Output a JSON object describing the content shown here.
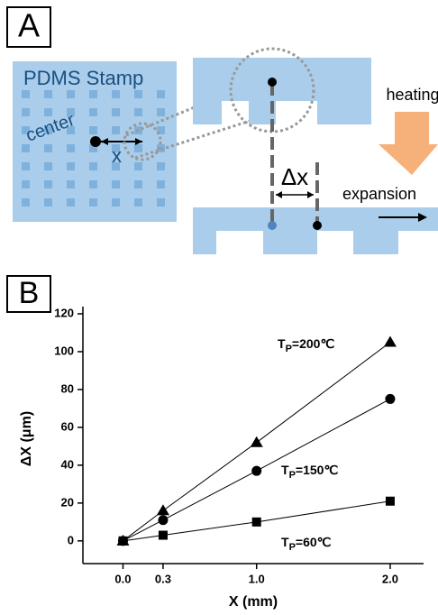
{
  "panel_a": {
    "label": "A",
    "stamp_label": "PDMS Stamp",
    "center_label": "center",
    "x_label": "x",
    "dx_label": "Δx",
    "heating_label": "heating",
    "expansion_label": "expansion"
  },
  "chart_data": {
    "type": "line",
    "panel_label": "B",
    "x_label": "X (mm)",
    "y_label": "ΔX (μm)",
    "x": [
      0,
      0.3,
      1.0,
      2.0
    ],
    "series": [
      {
        "name": "TP=200℃",
        "marker": "triangle",
        "color": "#000000",
        "values": [
          0,
          16,
          52,
          105
        ]
      },
      {
        "name": "TP=150℃",
        "marker": "circle",
        "color": "#000000",
        "values": [
          0,
          11,
          37,
          75
        ]
      },
      {
        "name": "TP=60℃",
        "marker": "square",
        "color": "#000000",
        "values": [
          0,
          3,
          10,
          21
        ]
      }
    ],
    "xlim": [
      -0.3,
      2.25
    ],
    "ylim": [
      -12,
      120
    ],
    "xticks": [
      {
        "value": 0,
        "label": "0.0"
      },
      0.3,
      {
        "value": 1,
        "label": "1.0"
      },
      {
        "value": 2,
        "label": "2.0"
      }
    ],
    "yticks": [
      0,
      20,
      40,
      60,
      80,
      100,
      120
    ]
  }
}
